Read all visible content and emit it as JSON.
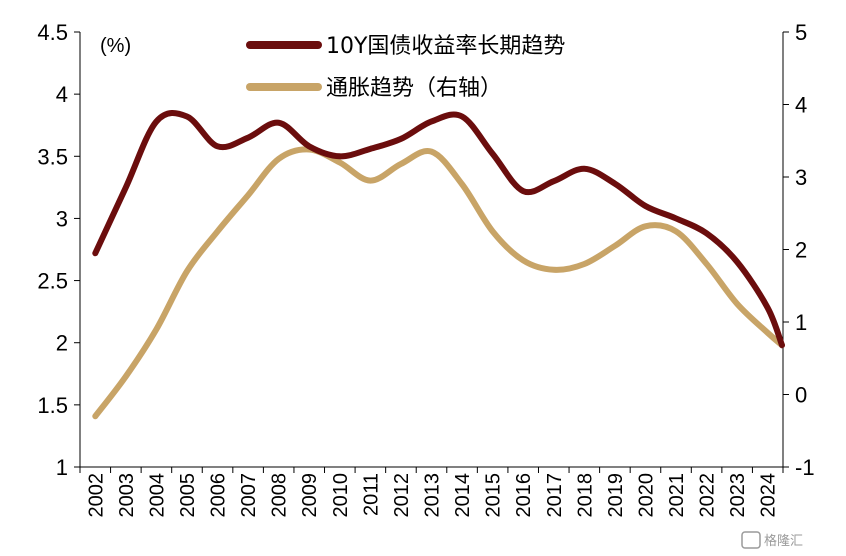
{
  "watermark": "格隆汇",
  "chart_data": {
    "type": "line",
    "unit_label": "(%)",
    "x": [
      "2002",
      "2003",
      "2004",
      "2005",
      "2006",
      "2007",
      "2008",
      "2009",
      "2010",
      "2011",
      "2012",
      "2013",
      "2014",
      "2015",
      "2016",
      "2017",
      "2018",
      "2019",
      "2020",
      "2021",
      "2022",
      "2023",
      "2024"
    ],
    "y_left": {
      "range": [
        1,
        4.5
      ],
      "ticks": [
        "1",
        "1.5",
        "2",
        "2.5",
        "3",
        "3.5",
        "4",
        "4.5"
      ]
    },
    "y_right": {
      "range": [
        -1,
        5
      ],
      "ticks": [
        "-1",
        "0",
        "1",
        "2",
        "3",
        "4",
        "5"
      ]
    },
    "legend_position": "top-center",
    "series": [
      {
        "name": "10Y国债收益率长期趋势",
        "axis": "left",
        "color": "#6b0d0d",
        "values": [
          2.72,
          3.25,
          3.78,
          3.82,
          3.58,
          3.65,
          3.77,
          3.58,
          3.5,
          3.56,
          3.64,
          3.78,
          3.82,
          3.52,
          3.22,
          3.3,
          3.4,
          3.28,
          3.1,
          3.0,
          2.88,
          2.65,
          2.28
        ]
      },
      {
        "name": "通胀趋势（右轴）",
        "axis": "right",
        "color": "#c8a467",
        "values": [
          -0.3,
          0.25,
          0.9,
          1.7,
          2.25,
          2.75,
          3.25,
          3.38,
          3.2,
          2.95,
          3.18,
          3.35,
          2.9,
          2.25,
          1.85,
          1.72,
          1.8,
          2.05,
          2.32,
          2.25,
          1.8,
          1.25,
          0.85
        ]
      }
    ],
    "end_point": {
      "x": "2024",
      "y_left": 1.98
    }
  }
}
